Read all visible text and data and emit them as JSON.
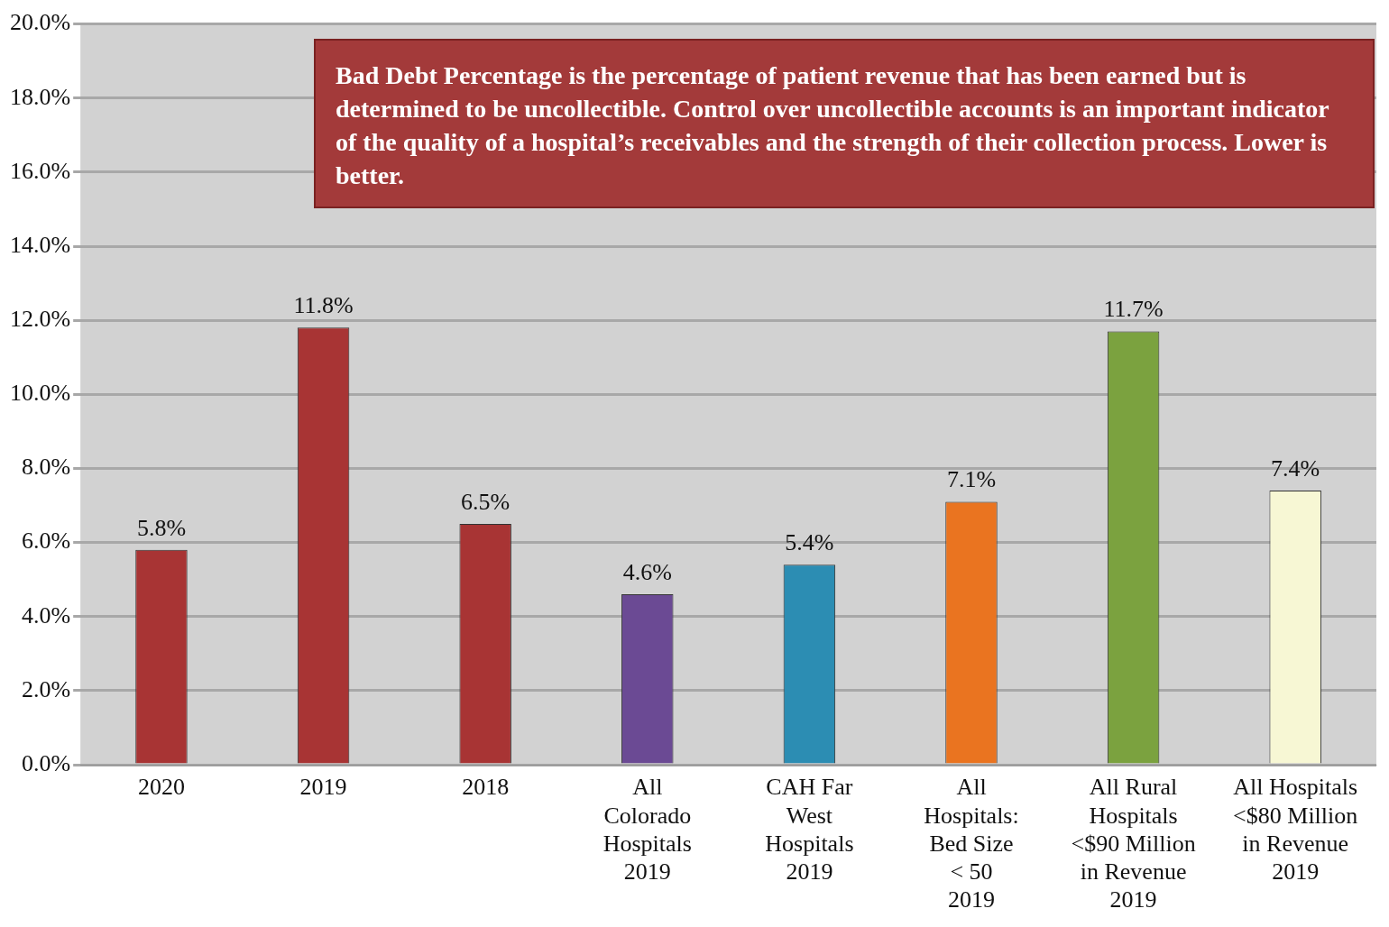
{
  "chart_data": {
    "type": "bar",
    "categories": [
      "2020",
      "2019",
      "2018",
      "All\nColorado\nHospitals\n2019",
      "CAH Far\nWest\nHospitals\n2019",
      "All\nHospitals:\nBed Size\n< 50\n2019",
      "All Rural\nHospitals\n<$90 Million\nin Revenue\n2019",
      "All Hospitals\n<$80 Million\nin Revenue\n2019"
    ],
    "values": [
      5.8,
      11.8,
      6.5,
      4.6,
      5.4,
      7.1,
      11.7,
      7.4
    ],
    "colors": [
      "#a83434",
      "#a83434",
      "#a83434",
      "#6b4a94",
      "#2c8db3",
      "#ea7420",
      "#7ba23f",
      "#f7f7d4"
    ],
    "value_labels": [
      "5.8%",
      "11.8%",
      "6.5%",
      "4.6%",
      "5.4%",
      "7.1%",
      "11.7%",
      "7.4%"
    ],
    "ylim": [
      0,
      20
    ],
    "yticks": [
      {
        "value": 0,
        "label": "0.0%"
      },
      {
        "value": 2,
        "label": "2.0%"
      },
      {
        "value": 4,
        "label": "4.0%"
      },
      {
        "value": 6,
        "label": "6.0%"
      },
      {
        "value": 8,
        "label": "8.0%"
      },
      {
        "value": 10,
        "label": "10.0%"
      },
      {
        "value": 12,
        "label": "12.0%"
      },
      {
        "value": 14,
        "label": "14.0%"
      },
      {
        "value": 16,
        "label": "16.0%"
      },
      {
        "value": 18,
        "label": "18.0%"
      },
      {
        "value": 20,
        "label": "20.0%"
      }
    ],
    "grid": "y",
    "annotations": [
      "Bad Debt Percentage is the percentage of patient revenue that has been earned but is determined to be uncollectible. Control over uncollectible accounts is an important indicator of the quality of a hospital’s receivables and the strength of their collection process. Lower is better."
    ]
  }
}
